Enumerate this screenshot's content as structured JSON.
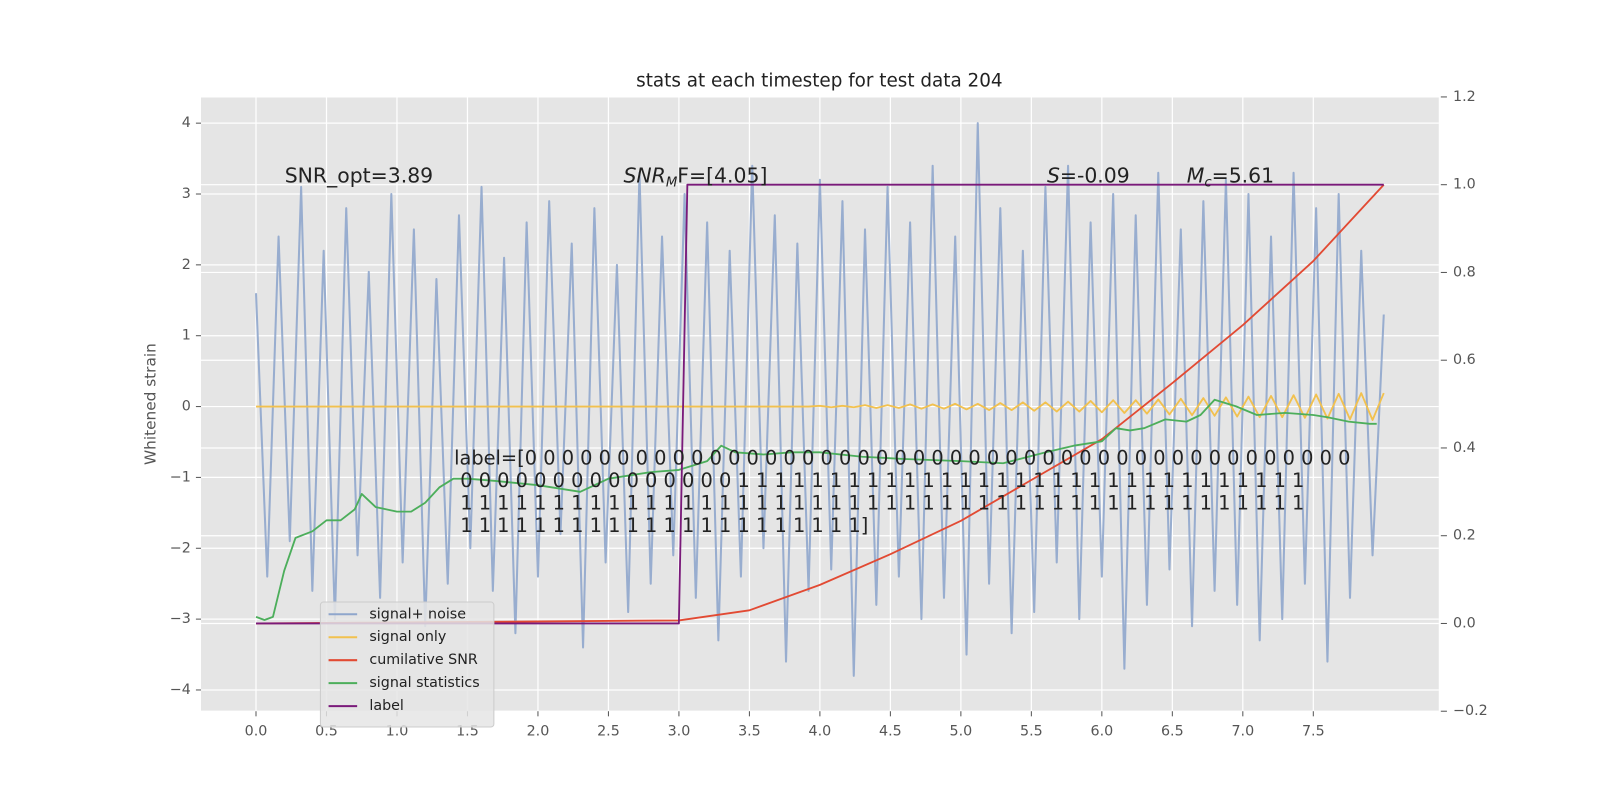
{
  "chart_data": {
    "type": "line",
    "title": "stats at each timestep for test data 204",
    "y_label": "Whitened strain",
    "xlim": [
      -0.39,
      8.39
    ],
    "ylim": [
      -4.3,
      4.37
    ],
    "y2lim": [
      -0.2,
      1.2
    ],
    "xticks": [
      {
        "value": 0,
        "label": "0.0"
      },
      0.5,
      {
        "value": 1,
        "label": "1.0"
      },
      1.5,
      {
        "value": 2,
        "label": "2.0"
      },
      2.5,
      {
        "value": 3,
        "label": "3.0"
      },
      3.5,
      {
        "value": 4,
        "label": "4.0"
      },
      4.5,
      {
        "value": 5,
        "label": "5.0"
      },
      5.5,
      {
        "value": 6,
        "label": "6.0"
      },
      6.5,
      {
        "value": 7,
        "label": "7.0"
      },
      7.5
    ],
    "yticks": [
      {
        "value": -4,
        "label": "−4"
      },
      {
        "value": -3,
        "label": "−3"
      },
      {
        "value": -2,
        "label": "−2"
      },
      {
        "value": -1,
        "label": "−1"
      },
      0,
      1,
      2,
      3,
      4
    ],
    "y2ticks": [
      {
        "value": -0.2,
        "label": "−0.2"
      },
      {
        "value": 0,
        "label": "0.0"
      },
      0.2,
      0.4,
      0.6,
      0.8,
      {
        "value": 1,
        "label": "1.0"
      },
      1.2
    ],
    "grid": true,
    "legend": "lower left",
    "series": [
      {
        "name": "signal+ noise",
        "color": "#8fa6cc",
        "axis": "y",
        "x": [
          0,
          0.08,
          0.16,
          0.24,
          0.32,
          0.4,
          0.48,
          0.56,
          0.64,
          0.72,
          0.8,
          0.88,
          0.96,
          1.04,
          1.12,
          1.2,
          1.28,
          1.36,
          1.44,
          1.52,
          1.6,
          1.68,
          1.76,
          1.84,
          1.92,
          2,
          2.08,
          2.16,
          2.24,
          2.32,
          2.4,
          2.48,
          2.56,
          2.64,
          2.72,
          2.8,
          2.88,
          2.96,
          3.04,
          3.12,
          3.2,
          3.28,
          3.36,
          3.44,
          3.52,
          3.6,
          3.68,
          3.76,
          3.84,
          3.92,
          4,
          4.08,
          4.16,
          4.24,
          4.32,
          4.4,
          4.48,
          4.56,
          4.64,
          4.72,
          4.8,
          4.88,
          4.96,
          5.04,
          5.12,
          5.2,
          5.28,
          5.36,
          5.44,
          5.52,
          5.6,
          5.68,
          5.76,
          5.84,
          5.92,
          6,
          6.08,
          6.16,
          6.24,
          6.32,
          6.4,
          6.48,
          6.56,
          6.64,
          6.72,
          6.8,
          6.88,
          6.96,
          7.04,
          7.12,
          7.2,
          7.28,
          7.36,
          7.44,
          7.52,
          7.6,
          7.68,
          7.76,
          7.84,
          7.92,
          8
        ],
        "values": [
          1.6,
          -2.4,
          2.4,
          -1.9,
          3.1,
          -2.6,
          2.2,
          -3.0,
          2.8,
          -2.1,
          1.9,
          -2.7,
          3.0,
          -2.2,
          2.5,
          -3.1,
          1.8,
          -2.5,
          2.7,
          -2.0,
          3.1,
          -2.6,
          2.1,
          -3.2,
          2.6,
          -2.4,
          2.9,
          -1.8,
          2.3,
          -3.4,
          2.8,
          -2.2,
          2.0,
          -2.9,
          3.3,
          -2.5,
          2.4,
          -2.1,
          3.0,
          -2.7,
          2.6,
          -3.3,
          2.2,
          -2.4,
          3.4,
          -2.0,
          2.7,
          -3.6,
          2.3,
          -2.6,
          3.2,
          -2.3,
          2.9,
          -3.8,
          2.5,
          -2.8,
          3.1,
          -2.4,
          2.6,
          -3.0,
          3.4,
          -2.7,
          2.4,
          -3.5,
          4.0,
          -2.5,
          2.8,
          -3.2,
          2.2,
          -2.9,
          3.1,
          -2.2,
          3.4,
          -3.0,
          2.6,
          -2.4,
          3.0,
          -3.7,
          2.7,
          -2.8,
          3.3,
          -2.3,
          2.5,
          -3.1,
          2.9,
          -2.6,
          3.2,
          -2.8,
          3.0,
          -3.3,
          2.4,
          -3.0,
          3.3,
          -2.5,
          2.8,
          -3.6,
          3.0,
          -2.7,
          2.2,
          -2.1,
          1.3
        ]
      },
      {
        "name": "signal only",
        "color": "#f2c14e",
        "axis": "y",
        "x": [
          0,
          0.08,
          0.16,
          0.24,
          0.32,
          0.4,
          0.48,
          0.56,
          0.64,
          0.72,
          0.8,
          0.88,
          0.96,
          1.04,
          1.12,
          1.2,
          1.28,
          1.36,
          1.44,
          1.52,
          1.6,
          1.68,
          1.76,
          1.84,
          1.92,
          2,
          2.08,
          2.16,
          2.24,
          2.32,
          2.4,
          2.48,
          2.56,
          2.64,
          2.72,
          2.8,
          2.88,
          2.96,
          3.04,
          3.12,
          3.2,
          3.28,
          3.36,
          3.44,
          3.52,
          3.6,
          3.68,
          3.76,
          3.84,
          3.92,
          4,
          4.08,
          4.16,
          4.24,
          4.32,
          4.4,
          4.48,
          4.56,
          4.64,
          4.72,
          4.8,
          4.88,
          4.96,
          5.04,
          5.12,
          5.2,
          5.28,
          5.36,
          5.44,
          5.52,
          5.6,
          5.68,
          5.76,
          5.84,
          5.92,
          6,
          6.08,
          6.16,
          6.24,
          6.32,
          6.4,
          6.48,
          6.56,
          6.64,
          6.72,
          6.8,
          6.88,
          6.96,
          7.04,
          7.12,
          7.2,
          7.28,
          7.36,
          7.44,
          7.52,
          7.6,
          7.68,
          7.76,
          7.84,
          7.92,
          8
        ],
        "values": [
          0,
          0,
          0,
          0,
          0,
          0,
          0,
          0,
          0,
          0,
          0,
          0,
          0,
          0,
          0,
          0,
          0,
          0,
          0,
          0,
          0,
          0,
          0,
          0,
          0,
          0,
          0,
          0,
          0,
          0,
          0,
          0,
          0,
          0,
          0,
          0,
          0,
          0,
          0,
          0,
          0,
          0,
          0,
          0,
          0,
          0,
          0,
          0,
          0,
          0,
          0.01,
          -0.01,
          0.01,
          -0.01,
          0.02,
          -0.02,
          0.02,
          -0.02,
          0.03,
          -0.03,
          0.03,
          -0.03,
          0.04,
          -0.04,
          0.04,
          -0.05,
          0.05,
          -0.05,
          0.06,
          -0.06,
          0.06,
          -0.07,
          0.07,
          -0.07,
          0.08,
          -0.08,
          0.09,
          -0.09,
          0.09,
          -0.1,
          0.1,
          -0.11,
          0.11,
          -0.12,
          0.12,
          -0.13,
          0.13,
          -0.14,
          0.14,
          -0.15,
          0.15,
          -0.15,
          0.16,
          -0.16,
          0.17,
          -0.17,
          0.18,
          -0.18,
          0.19,
          -0.19,
          0.19
        ]
      },
      {
        "name": "cumilative SNR",
        "color": "#e24a33",
        "axis": "y2",
        "x": [
          0,
          3.0,
          3.5,
          4.0,
          4.5,
          5.0,
          5.5,
          6.0,
          6.5,
          7.0,
          7.5,
          8.0
        ],
        "values": [
          0,
          0.007,
          0.03,
          0.088,
          0.158,
          0.234,
          0.327,
          0.42,
          0.548,
          0.68,
          0.826,
          1.0
        ]
      },
      {
        "name": "signal statistics",
        "color": "#4cae5b",
        "axis": "y2",
        "x": [
          0,
          0.06,
          0.12,
          0.2,
          0.28,
          0.4,
          0.5,
          0.6,
          0.7,
          0.75,
          0.85,
          1.0,
          1.1,
          1.2,
          1.3,
          1.4,
          1.5,
          1.7,
          2.0,
          2.3,
          2.5,
          2.8,
          3.0,
          3.2,
          3.3,
          3.4,
          3.6,
          3.8,
          4.0,
          4.3,
          4.6,
          5.0,
          5.3,
          5.6,
          5.8,
          6.0,
          6.1,
          6.2,
          6.3,
          6.45,
          6.6,
          6.7,
          6.8,
          6.95,
          7.1,
          7.3,
          7.5,
          7.6,
          7.75,
          7.9,
          7.95
        ],
        "values": [
          0.015,
          0.008,
          0.015,
          0.12,
          0.195,
          0.21,
          0.235,
          0.235,
          0.26,
          0.295,
          0.265,
          0.255,
          0.255,
          0.275,
          0.31,
          0.33,
          0.33,
          0.325,
          0.315,
          0.3,
          0.33,
          0.345,
          0.35,
          0.37,
          0.405,
          0.39,
          0.385,
          0.39,
          0.39,
          0.38,
          0.375,
          0.37,
          0.365,
          0.39,
          0.405,
          0.415,
          0.445,
          0.44,
          0.445,
          0.465,
          0.46,
          0.475,
          0.51,
          0.495,
          0.475,
          0.48,
          0.475,
          0.47,
          0.46,
          0.455,
          0.455
        ]
      },
      {
        "name": "label",
        "color": "#7a1a7a",
        "axis": "y2",
        "x": [
          0,
          3.0,
          3.06,
          8.0
        ],
        "values": [
          0,
          0,
          1,
          1
        ]
      }
    ],
    "annotations": [
      {
        "text": "SNR_opt=3.89"
      },
      {
        "italic": "SNR",
        "sub": "M",
        "text": "F=[4.05]"
      },
      {
        "italic": "S",
        "text": "=-0.09"
      },
      {
        "italic": "M",
        "sub": "c",
        "text": "=5.61"
      }
    ],
    "label_text": [
      "label=[0 0 0 0 0 0 0 0 0 0 0 0 0 0 0 0 0 0 0 0 0 0 0 0 0 0 0 0 0 0 0 0 0 0 0 0 0 0 0 0 0 0 0 0 0",
      "0 0 0 0 0 0 0 0 0 0 0 0 0 0 0 1 1 1 1 1 1 1 1 1 1 1 1 1 1 1 1 1 1 1 1 1 1 1 1 1 1 1 1 1 1 1",
      "1 1 1 1 1 1 1 1 1 1 1 1 1 1 1 1 1 1 1 1 1 1 1 1 1 1 1 1 1 1 1 1 1 1 1 1 1 1 1 1 1 1 1 1 1 1",
      "1 1 1 1 1 1 1 1 1 1 1 1 1 1 1 1 1 1 1 1 1 1]"
    ]
  }
}
